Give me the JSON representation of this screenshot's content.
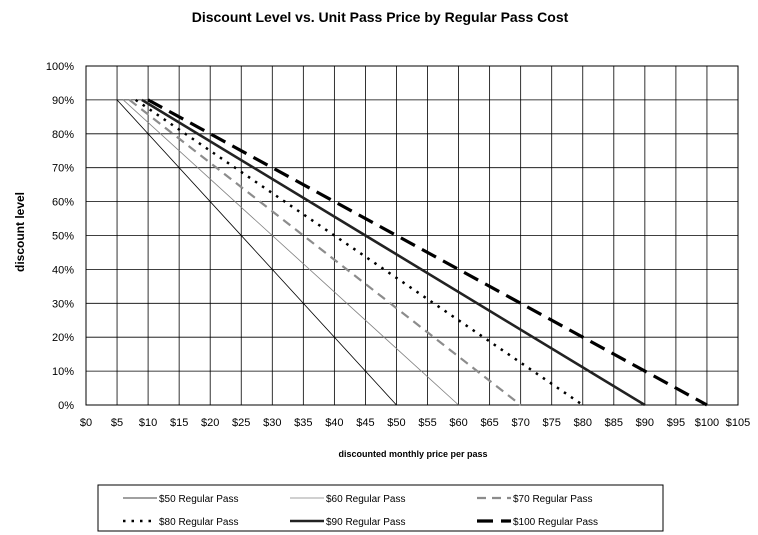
{
  "chart_data": {
    "type": "line",
    "title": "Discount Level vs. Unit Pass Price by Regular Pass Cost",
    "xlabel": "discounted monthly price per pass",
    "ylabel": "discount level",
    "xlim": [
      0,
      105
    ],
    "ylim": [
      0,
      100
    ],
    "x_ticks": [
      "$0",
      "$5",
      "$10",
      "$15",
      "$20",
      "$25",
      "$30",
      "$35",
      "$40",
      "$45",
      "$50",
      "$55",
      "$60",
      "$65",
      "$70",
      "$75",
      "$80",
      "$85",
      "$90",
      "$95",
      "$100",
      "$105"
    ],
    "y_ticks": [
      "0%",
      "10%",
      "20%",
      "30%",
      "40%",
      "50%",
      "60%",
      "70%",
      "80%",
      "90%",
      "100%"
    ],
    "grid": true,
    "legend_position": "bottom",
    "series": [
      {
        "name": "$50 Regular Pass",
        "x": [
          5,
          50
        ],
        "y": [
          90,
          0
        ],
        "color": "#000000",
        "style": "thin-solid"
      },
      {
        "name": "$60 Regular Pass",
        "x": [
          6,
          60
        ],
        "y": [
          90,
          0
        ],
        "color": "#808080",
        "style": "thin-solid"
      },
      {
        "name": "$70 Regular Pass",
        "x": [
          7,
          70
        ],
        "y": [
          90,
          0
        ],
        "color": "#8c8c8c",
        "style": "dash"
      },
      {
        "name": "$80 Regular Pass",
        "x": [
          8,
          80
        ],
        "y": [
          90,
          0
        ],
        "color": "#000000",
        "style": "dot"
      },
      {
        "name": "$90 Regular Pass",
        "x": [
          9,
          90
        ],
        "y": [
          90,
          0
        ],
        "color": "#222222",
        "style": "thick-solid"
      },
      {
        "name": "$100 Regular Pass",
        "x": [
          10,
          100
        ],
        "y": [
          90,
          0
        ],
        "color": "#000000",
        "style": "long-dash"
      }
    ]
  }
}
